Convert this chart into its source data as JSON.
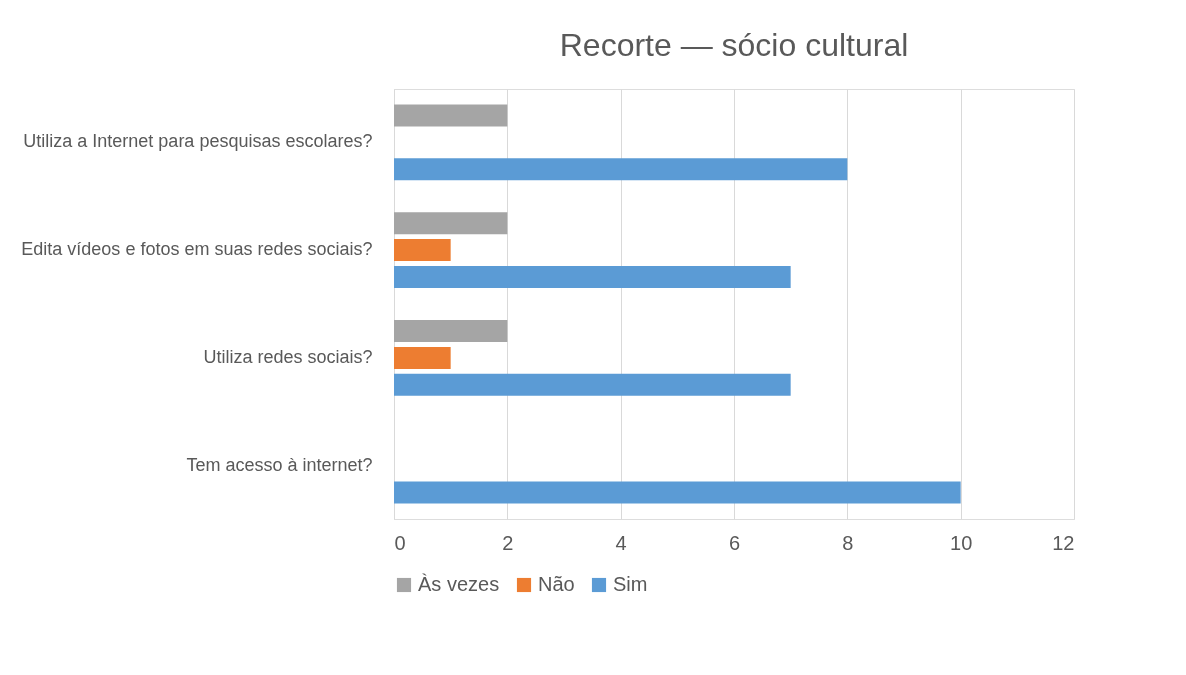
{
  "chart_data": {
    "type": "bar",
    "orientation": "horizontal",
    "title": "Recorte — sócio cultural",
    "categories": [
      "Utiliza a Internet para pesquisas escolares?",
      "Edita vídeos e fotos em suas redes sociais?",
      "Utiliza redes sociais?",
      "Tem acesso à internet?"
    ],
    "series": [
      {
        "name": "Às vezes",
        "color": "#a5a5a5",
        "values": [
          2,
          2,
          2,
          null
        ]
      },
      {
        "name": "Não",
        "color": "#ed7d31",
        "values": [
          null,
          1,
          1,
          null
        ]
      },
      {
        "name": "Sim",
        "color": "#5b9bd5",
        "values": [
          8,
          7,
          7,
          10
        ]
      }
    ],
    "xlim": [
      0,
      12
    ],
    "xticks": [
      0,
      2,
      4,
      6,
      8,
      10,
      12
    ],
    "grid": "x",
    "legend": "bottom"
  }
}
